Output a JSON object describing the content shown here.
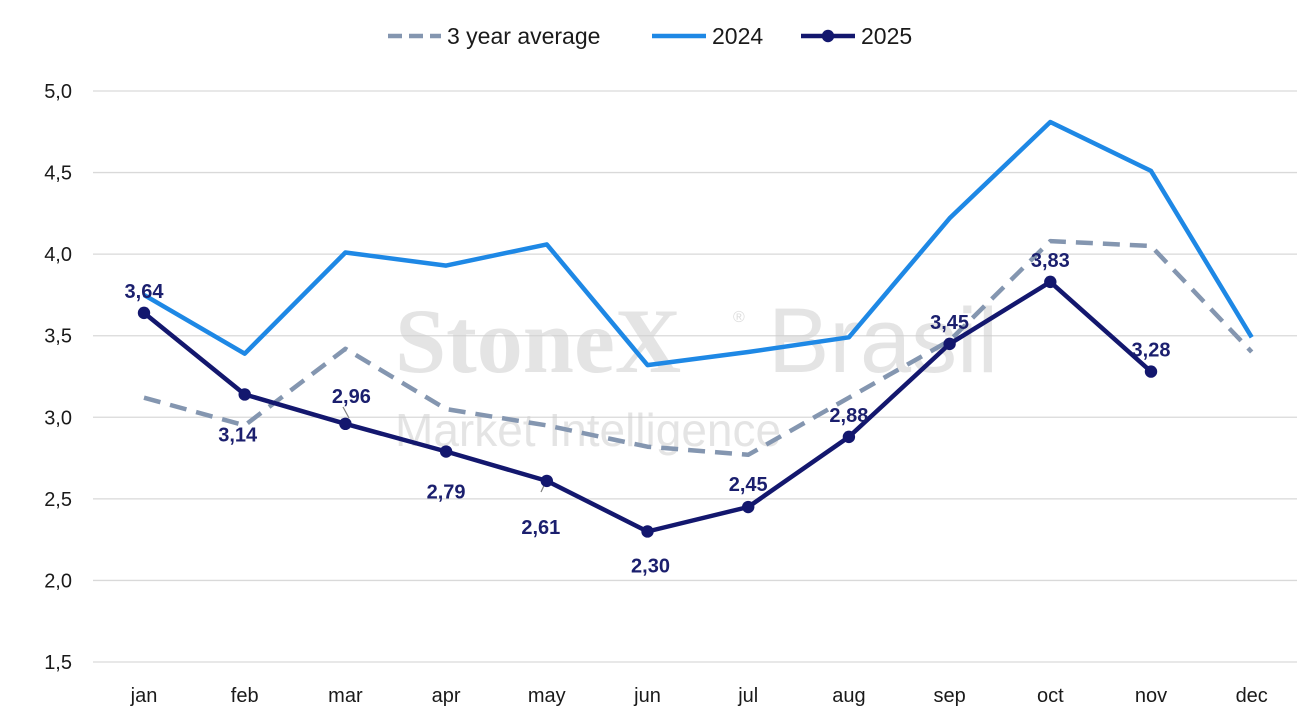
{
  "watermark": {
    "line1_bold": "StoneX",
    "line1_reg": "®",
    "line1_light": "Brasil",
    "line2": "Market Intelligence"
  },
  "chart_data": {
    "type": "line",
    "categories": [
      "jan",
      "feb",
      "mar",
      "apr",
      "may",
      "jun",
      "jul",
      "aug",
      "sep",
      "oct",
      "nov",
      "dec"
    ],
    "ylim": [
      1.5,
      5.0
    ],
    "yticks": [
      "1,5",
      "2,0",
      "2,5",
      "3,0",
      "3,5",
      "4,0",
      "4,5",
      "5,0"
    ],
    "ytick_values": [
      1.5,
      2.0,
      2.5,
      3.0,
      3.5,
      4.0,
      4.5,
      5.0
    ],
    "grid": true,
    "legend_position": "top-center",
    "series": [
      {
        "name": "3 year average",
        "style": "dashed",
        "color": "#8496b0",
        "values": [
          3.12,
          2.95,
          3.42,
          3.05,
          2.95,
          2.82,
          2.77,
          3.12,
          3.47,
          4.08,
          4.05,
          3.4
        ]
      },
      {
        "name": "2024",
        "style": "solid",
        "color": "#1e88e5",
        "values": [
          3.75,
          3.39,
          4.01,
          3.93,
          4.06,
          3.32,
          3.4,
          3.49,
          4.22,
          4.81,
          4.51,
          3.49
        ]
      },
      {
        "name": "2025",
        "style": "solid-markers",
        "color": "#13176e",
        "values": [
          3.64,
          3.14,
          2.96,
          2.79,
          2.61,
          2.3,
          2.45,
          2.88,
          3.45,
          3.83,
          3.28,
          null
        ],
        "labels": [
          "3,64",
          "3,14",
          "2,96",
          "2,79",
          "2,61",
          "2,30",
          "2,45",
          "2,88",
          "3,45",
          "3,83",
          "3,28",
          ""
        ]
      }
    ]
  }
}
